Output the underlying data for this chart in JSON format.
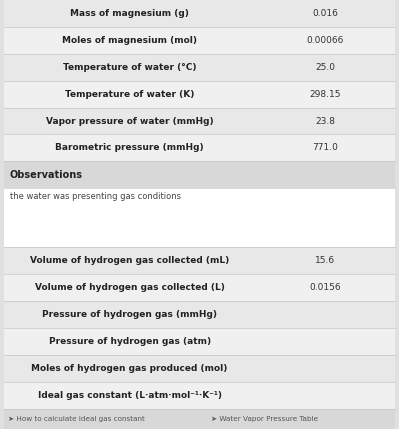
{
  "rows": [
    {
      "label": "Mass of magnesium (g)",
      "value": "0.016",
      "bg": "#e8e8e8",
      "label_bold": true,
      "indent": 0
    },
    {
      "label": "Moles of magnesium (mol)",
      "value": "0.00066",
      "bg": "#f0f0f0",
      "label_bold": true,
      "indent": 0
    },
    {
      "label": "Temperature of water (°C)",
      "value": "25.0",
      "bg": "#e8e8e8",
      "label_bold": true,
      "indent": 0
    },
    {
      "label": "Temperature of water (K)",
      "value": "298.15",
      "bg": "#f0f0f0",
      "label_bold": true,
      "indent": 0
    },
    {
      "label": "Vapor pressure of water (mmHg)",
      "value": "23.8",
      "bg": "#e8e8e8",
      "label_bold": true,
      "indent": 0
    },
    {
      "label": "Barometric pressure (mmHg)",
      "value": "771.0",
      "bg": "#f0f0f0",
      "label_bold": true,
      "indent": 0
    },
    {
      "label": "Observations",
      "value": "",
      "bg": "#d8d8d8",
      "label_bold": true,
      "indent": 0,
      "header": true
    },
    {
      "label": "the water was presenting gas conditions",
      "value": "",
      "bg": "#ffffff",
      "label_bold": false,
      "indent": 0,
      "obs": true
    },
    {
      "label": "Volume of hydrogen gas collected (mL)",
      "value": "15.6",
      "bg": "#e8e8e8",
      "label_bold": true,
      "indent": 0
    },
    {
      "label": "Volume of hydrogen gas collected (L)",
      "value": "0.0156",
      "bg": "#f0f0f0",
      "label_bold": true,
      "indent": 0
    },
    {
      "label": "Pressure of hydrogen gas (mmHg)",
      "value": "",
      "bg": "#e8e8e8",
      "label_bold": true,
      "indent": 0
    },
    {
      "label": "Pressure of hydrogen gas (atm)",
      "value": "",
      "bg": "#f0f0f0",
      "label_bold": true,
      "indent": 0
    },
    {
      "label": "Moles of hydrogen gas produced (mol)",
      "value": "",
      "bg": "#e8e8e8",
      "label_bold": true,
      "indent": 0
    },
    {
      "label": "Ideal gas constant (L·atm·mol⁻¹·K⁻¹)",
      "value": "",
      "bg": "#f0f0f0",
      "label_bold": true,
      "indent": 0
    }
  ],
  "footer": {
    "bg": "#d8d8d8",
    "links": [
      {
        "icon": "➤",
        "text": "How to calculate ideal gas constant"
      },
      {
        "icon": "➤",
        "text": "Water Vapor Pressure Table"
      }
    ]
  },
  "fig_bg": "#e0e0e0",
  "text_color": "#222222",
  "value_color": "#333333",
  "obs_text_color": "#444444"
}
